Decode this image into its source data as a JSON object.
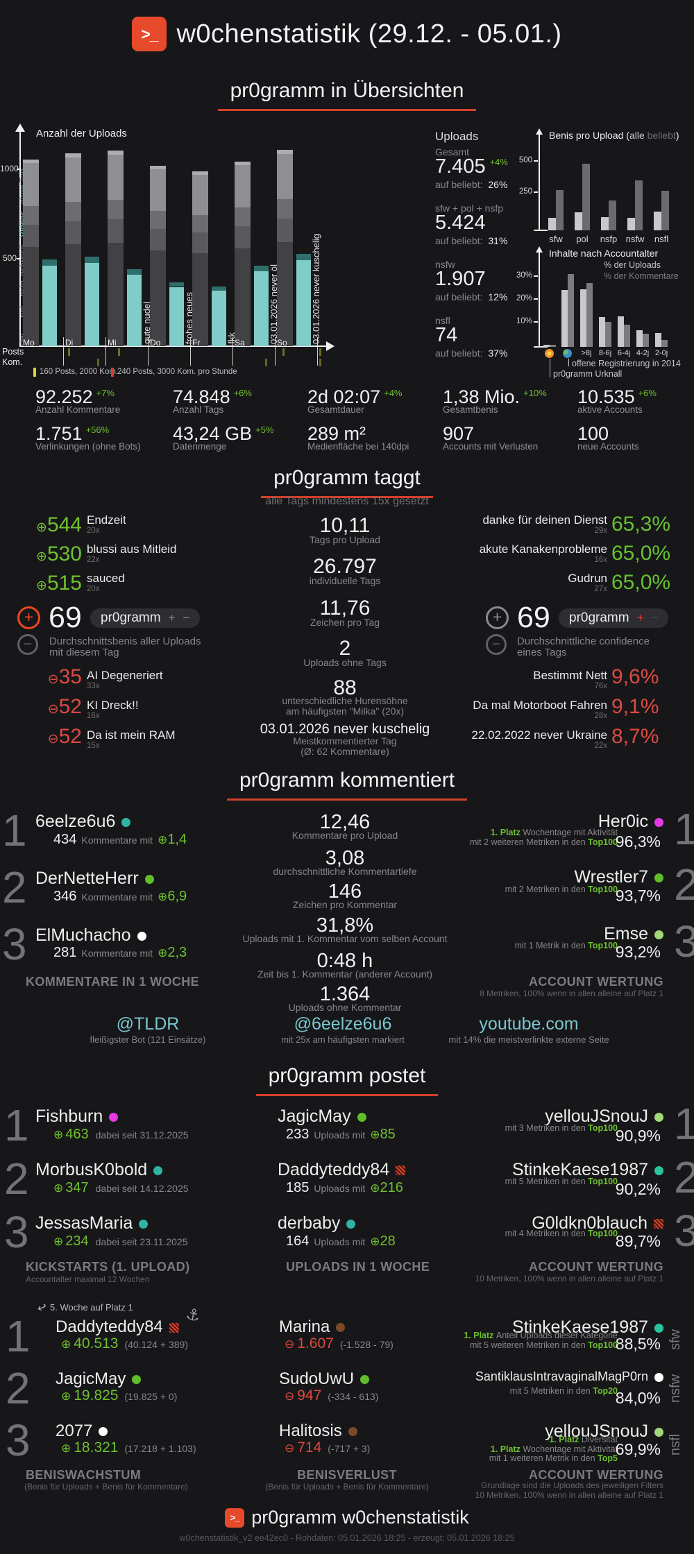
{
  "page": {
    "background": "#17171a",
    "accent": "#d24029"
  },
  "header": {
    "title": "w0chenstatistik (29.12. - 05.01.)",
    "logo_icon": "pr0gramm-terminal-icon"
  },
  "headings": {
    "uebersichten": "pr0gramm in Übersichten",
    "taggt": "pr0gramm taggt",
    "taggt_subtitle": "alle Tags mindestens 15x gesetzt",
    "kommentiert": "pr0gramm kommentiert",
    "postet": "pr0gramm postet"
  },
  "chart_data": [
    {
      "id": "anzahl_der_uploads",
      "type": "bar",
      "title": "Anzahl der Uploads",
      "categories": [
        "Mo",
        "Di",
        "Mi",
        "Do",
        "Fr",
        "Sa",
        "So"
      ],
      "series": [
        {
          "name": "Uploads gesamt (Stack: sfw, pol, nsfp, nsfw, nsfl)",
          "values": [
            1045,
            1075,
            1090,
            1010,
            980,
            1030,
            1095
          ]
        },
        {
          "name": "Videos",
          "values": [
            450,
            465,
            400,
            330,
            310,
            420,
            480
          ]
        },
        {
          "name": "ohne Ton",
          "values": [
            35,
            35,
            30,
            25,
            25,
            30,
            35
          ]
        }
      ],
      "stack_fractions": [
        0.53,
        0.12,
        0.1,
        0.23,
        0.02
      ],
      "axis_stack_labels": [
        {
          "text": "sfw",
          "color": "#86868a"
        },
        {
          "text": "pol",
          "color": "#86868a"
        },
        {
          "text": "nsfp",
          "color": "#86868a"
        },
        {
          "text": "nsfw",
          "color": "#86868a"
        },
        {
          "text": "nsfl",
          "color": "#86868a"
        },
        {
          "text": "Videos",
          "color": "#6fc7c4"
        },
        {
          "text": "ohne Ton",
          "color": "#55817f"
        }
      ],
      "yticks": [
        500,
        1000
      ],
      "ylim": [
        0,
        1200
      ],
      "annotations": [
        {
          "category": "Mi",
          "text": "gute nudel"
        },
        {
          "category": "Do",
          "text": "frohes neues"
        },
        {
          "category": "Fr",
          "text": "fkk"
        },
        {
          "category": "Sa",
          "text": "03.01.2026 never öl"
        },
        {
          "category": "So",
          "text": "03.01.2026 never kuschelig"
        }
      ],
      "activity_rows": [
        "Posts",
        "Kom."
      ],
      "activity_ticks": {
        "posts": [
          98,
          170,
          407,
          460
        ],
        "kom": [
          140,
          382,
          460
        ]
      },
      "legend": [
        {
          "color": "#e3d32b",
          "label": "160 Posts, 2000 Kom."
        },
        {
          "color": "#e0392c",
          "label": "240 Posts, 3000 Kom. pro Stunde"
        }
      ]
    },
    {
      "id": "benis_pro_upload",
      "type": "bar",
      "title": "Benis pro Upload",
      "categories": [
        "sfw",
        "pol",
        "nsfp",
        "nsfw",
        "nsfl"
      ],
      "series": [
        {
          "name": "alle",
          "color": "#c9c9cb",
          "values": [
            90,
            130,
            95,
            90,
            135
          ]
        },
        {
          "name": "beliebt",
          "color": "#6b6b6e",
          "values": [
            290,
            480,
            215,
            360,
            285
          ]
        }
      ],
      "yticks": [
        250,
        500
      ],
      "ylim": [
        0,
        560
      ],
      "legend_position": "title"
    },
    {
      "id": "inhalte_nach_accountalter",
      "type": "bar",
      "title": "Inhalte nach Accountalter",
      "categories": [
        "💥",
        "🌍",
        ">8j",
        "8-6j",
        "6-4j",
        "4-2j",
        "2-0j"
      ],
      "category_icons": [
        "boom",
        "globe",
        null,
        null,
        null,
        null,
        null
      ],
      "series": [
        {
          "name": "% der Uploads",
          "color": "#c9c9cb",
          "values": [
            1,
            24,
            24.5,
            12.5,
            13,
            7,
            6
          ]
        },
        {
          "name": "% der Kommentare",
          "color": "#7c7c7f",
          "values": [
            1,
            31,
            27,
            10.5,
            9.5,
            5.5,
            3
          ]
        }
      ],
      "yticks": [
        "10%",
        "20%",
        "30%"
      ],
      "ylim": [
        0,
        36
      ],
      "annotations": [
        {
          "target": "🌍",
          "text": "offene Registrierung in 2014"
        },
        {
          "target": "💥",
          "text": "pr0gramm Urknall"
        }
      ]
    }
  ],
  "overview": {
    "uploads_panel": {
      "title": "Uploads",
      "entries": [
        {
          "label": "Gesamt",
          "value": "7.405",
          "delta": "+4%",
          "beliebt_label": "auf beliebt:",
          "beliebt": "26%"
        },
        {
          "label": "sfw + pol + nsfp",
          "value": "5.424",
          "delta": null,
          "beliebt_label": "auf beliebt:",
          "beliebt": "31%"
        },
        {
          "label": "nsfw",
          "value": "1.907",
          "delta": null,
          "beliebt_label": "auf beliebt:",
          "beliebt": "12%"
        },
        {
          "label": "nsfl",
          "value": "74",
          "delta": null,
          "beliebt_label": "auf beliebt:",
          "beliebt": "37%"
        }
      ]
    },
    "stats_rows": [
      [
        {
          "value": "92.252",
          "delta": "+7%",
          "label": "Anzahl Kommentare"
        },
        {
          "value": "74.848",
          "delta": "+6%",
          "label": "Anzahl Tags"
        },
        {
          "value": "2d 02:07",
          "delta": "+4%",
          "label": "Gesamtdauer"
        },
        {
          "value": "1,38 Mio.",
          "delta": "+10%",
          "label": "Gesamtbenis"
        },
        {
          "value": "10.535",
          "delta": "+6%",
          "label": "aktive Accounts"
        }
      ],
      [
        {
          "value": "1.751",
          "delta": "+56%",
          "label": "Verlinkungen (ohne Bots)"
        },
        {
          "value": "43,24 GB",
          "delta": "+5%",
          "label": "Datenmenge"
        },
        {
          "value": "289 m²",
          "delta": null,
          "label": "Medienfläche bei 140dpi"
        },
        {
          "value": "907",
          "delta": null,
          "label": "Accounts mit Verlusten"
        },
        {
          "value": "100",
          "delta": null,
          "label": "neue Accounts"
        }
      ]
    ]
  },
  "taggt": {
    "top": [
      {
        "value": "544",
        "tag": "Endzeit",
        "count": "20x"
      },
      {
        "value": "530",
        "tag": "blussi aus Mitleid",
        "count": "22x"
      },
      {
        "value": "515",
        "tag": "sauced",
        "count": "20x"
      }
    ],
    "benis_badge": {
      "value": "69",
      "pill": "pr0gramm",
      "desc": [
        "Durchschnittsbenis aller Uploads",
        "mit diesem Tag"
      ]
    },
    "flop": [
      {
        "value": "35",
        "tag": "AI Degeneriert",
        "count": "33x"
      },
      {
        "value": "52",
        "tag": "KI Dreck!!",
        "count": "16x"
      },
      {
        "value": "52",
        "tag": "Da ist mein RAM",
        "count": "15x"
      }
    ],
    "stats": [
      {
        "value": "10,11",
        "label": [
          "Tags pro Upload"
        ]
      },
      {
        "value": "26.797",
        "label": [
          "individuelle Tags"
        ]
      },
      {
        "value": "11,76",
        "label": [
          "Zeichen pro Tag"
        ]
      },
      {
        "value": "2",
        "label": [
          "Uploads ohne Tags"
        ]
      },
      {
        "value": "88",
        "label": [
          "unterschiedliche Hurensöhne",
          "am häufigsten \"Milka\" (20x)"
        ]
      },
      {
        "value": "03.01.2026 never kuschelig",
        "small": true,
        "label": [
          "Meistkommentierter Tag",
          "(Ø: 62 Kommentare)"
        ]
      }
    ],
    "confidence_badge": {
      "value": "69",
      "pill": "pr0gramm",
      "desc": [
        "Durchschnittliche confidence",
        "eines Tags"
      ]
    },
    "conf_top": [
      {
        "tag": "danke für deinen Dienst",
        "count": "29x",
        "value": "65,3%"
      },
      {
        "tag": "akute Kanakenprobleme",
        "count": "16x",
        "value": "65,0%"
      },
      {
        "tag": "Gudrun",
        "count": "27x",
        "value": "65,0%"
      }
    ],
    "conf_flop": [
      {
        "tag": "Bestimmt Nett",
        "count": "76x",
        "value": "9,6%"
      },
      {
        "tag": "Da mal Motorboot Fahren",
        "count": "28x",
        "value": "9,1%"
      },
      {
        "tag": "22.02.2022 never Ukraine",
        "count": "22x",
        "value": "8,7%"
      }
    ]
  },
  "kommentiert": {
    "left": {
      "entries": [
        {
          "rank": "1",
          "name": "6eelze6u6",
          "dot": "#2fb3a3",
          "value": "434",
          "unit": "Kommentare mit",
          "delta": "1,4"
        },
        {
          "rank": "2",
          "name": "DerNetteHerr",
          "dot": "#61bd2a",
          "value": "346",
          "unit": "Kommentare mit",
          "delta": "6,9"
        },
        {
          "rank": "3",
          "name": "ElMuchacho",
          "dot": "#ffffff",
          "value": "281",
          "unit": "Kommentare mit",
          "delta": "2,3"
        }
      ],
      "caption": "KOMMENTARE IN 1 WOCHE"
    },
    "middle": [
      {
        "value": "12,46",
        "label": "Kommentare pro Upload"
      },
      {
        "value": "3,08",
        "label": "durchschnittliche Kommentartiefe"
      },
      {
        "value": "146",
        "label": "Zeichen pro Kommentar"
      },
      {
        "value": "31,8%",
        "label": "Uploads mit 1. Kommentar vom selben Account"
      },
      {
        "value": "0:48 h",
        "label": "Zeit bis 1. Kommentar (anderer Account)"
      },
      {
        "value": "1.364",
        "label": "Uploads ohne Kommentar"
      }
    ],
    "right": {
      "entries": [
        {
          "rank": "1",
          "name": "Her0ic",
          "dot": "#e33ae3",
          "value": "96,3%",
          "lines": [
            [
              {
                "t": "1. Platz ",
                "hl": true
              },
              {
                "t": "Wochentage mit Aktivität"
              }
            ],
            [
              {
                "t": "mit 2 weiteren Metriken in den "
              },
              {
                "t": "Top100",
                "hl": true
              }
            ]
          ]
        },
        {
          "rank": "2",
          "name": "Wrestler7",
          "dot": "#61bd2a",
          "value": "93,7%",
          "lines": [
            [
              {
                "t": "mit 2 Metriken in den "
              },
              {
                "t": "Top100",
                "hl": true
              }
            ]
          ]
        },
        {
          "rank": "3",
          "name": "Emse",
          "dot": "#a3d877",
          "value": "93,2%",
          "lines": [
            [
              {
                "t": "mit 1 Metrik in den "
              },
              {
                "t": "Top100",
                "hl": true
              }
            ]
          ]
        }
      ],
      "caption": "ACCOUNT WERTUNG",
      "caption_sub": "8 Metriken, 100% wenn in allen alleine auf Platz 1"
    },
    "highlights": [
      {
        "name": "@TLDR",
        "label": "fleißigster Bot (121 Einsätze)"
      },
      {
        "name": "@6eelze6u6",
        "label": "mit 25x am häufigsten markiert"
      },
      {
        "name": "youtube.com",
        "label": "mit 14% die meistverlinkte externe Seite"
      }
    ]
  },
  "postet": {
    "left": {
      "entries": [
        {
          "rank": "1",
          "name": "Fishburn",
          "dot": "#e33ae3",
          "delta": "463",
          "label": "dabei seit 31.12.2025"
        },
        {
          "rank": "2",
          "name": "MorbusK0bold",
          "dot": "#2fb3a3",
          "delta": "347",
          "label": "dabei seit 14.12.2025"
        },
        {
          "rank": "3",
          "name": "JessasMaria",
          "dot": "#2fb3a3",
          "delta": "234",
          "label": "dabei seit 23.11.2025"
        }
      ],
      "caption": "KICKSTARTS (1. UPLOAD)",
      "caption_sub": "Accountalter maximal 12 Wochen"
    },
    "middle": {
      "entries": [
        {
          "name": "JagicMay",
          "dot": "#61bd2a",
          "value": "233",
          "unit": "Uploads mit",
          "delta": "85"
        },
        {
          "name": "Daddyteddy84",
          "dot": "banned",
          "value": "185",
          "unit": "Uploads mit",
          "delta": "216"
        },
        {
          "name": "derbaby",
          "dot": "#2fb3a3",
          "value": "164",
          "unit": "Uploads mit",
          "delta": "28"
        }
      ],
      "caption": "UPLOADS IN 1 WOCHE"
    },
    "right": {
      "entries": [
        {
          "rank": "1",
          "name": "yellouJSnouJ",
          "dot": "#a3d877",
          "value": "90,9%",
          "lines": [
            [
              {
                "t": "mit 3 Metriken in den "
              },
              {
                "t": "Top100",
                "hl": true
              }
            ]
          ]
        },
        {
          "rank": "2",
          "name": "StinkeKaese1987",
          "dot": "#2cc29c",
          "value": "90,2%",
          "lines": [
            [
              {
                "t": "mit 5 Metriken in den "
              },
              {
                "t": "Top100",
                "hl": true
              }
            ]
          ]
        },
        {
          "rank": "3",
          "name": "G0ldkn0blauch",
          "dot": "banned",
          "value": "89,7%",
          "lines": [
            [
              {
                "t": "mit 4 Metriken in den "
              },
              {
                "t": "Top100",
                "hl": true
              }
            ]
          ]
        }
      ],
      "caption": "ACCOUNT WERTUNG",
      "caption_sub": "10 Metriken, 100% wenn in allen alleine auf Platz 1"
    }
  },
  "benis": {
    "note": "5. Woche auf Platz 1",
    "left": {
      "entries": [
        {
          "rank": "1",
          "name": "Daddyteddy84",
          "dot": "banned",
          "anchor": true,
          "delta": "40.513",
          "detail": "(40.124 + 389)"
        },
        {
          "rank": "2",
          "name": "JagicMay",
          "dot": "#61bd2a",
          "delta": "19.825",
          "detail": "(19.825 + 0)"
        },
        {
          "rank": "3",
          "name": "2077",
          "dot": "#ffffff",
          "delta": "18.321",
          "detail": "(17.218 + 1.103)"
        }
      ],
      "caption": "BENISWACHSTUM",
      "caption_sub": "(Benis für Uploads + Benis für Kommentare)"
    },
    "middle": {
      "entries": [
        {
          "name": "Marina",
          "dot": "#7c4a28",
          "delta": "1.607",
          "detail": "(-1.528 - 79)"
        },
        {
          "name": "SudoUwU",
          "dot": "#61bd2a",
          "delta": "947",
          "detail": "(-334 - 613)"
        },
        {
          "name": "Halitosis",
          "dot": "#7c4a28",
          "delta": "714",
          "detail": "(-717 + 3)"
        }
      ],
      "caption": "BENISVERLUST",
      "caption_sub": "(Benis für Uploads + Benis für Kommentare)"
    },
    "right": {
      "entries": [
        {
          "name": "StinkeKaese1987",
          "dot": "#2cc29c",
          "side": "sfw",
          "value": "88,5%",
          "lines": [
            [
              {
                "t": "1. Platz ",
                "hl": true
              },
              {
                "t": "Anteil Uploads dieser Kategorie"
              }
            ],
            [
              {
                "t": "mit 5 weiteren Metriken in den "
              },
              {
                "t": "Top100",
                "hl": true
              }
            ]
          ]
        },
        {
          "name": "SantiklausIntravaginalMagP0rn",
          "dot": "#ffffff",
          "side": "nsfw",
          "small": true,
          "value": "84,0%",
          "lines": [
            [
              {
                "t": "mit 5 Metriken in den "
              },
              {
                "t": "Top20",
                "hl": true
              }
            ]
          ]
        },
        {
          "name": "yellouJSnouJ",
          "dot": "#a3d877",
          "side": "nsfl",
          "value": "69,9%",
          "lines": [
            [
              {
                "t": "1. Platz ",
                "hl": true
              },
              {
                "t": "Diversität"
              }
            ],
            [
              {
                "t": "1. Platz ",
                "hl": true
              },
              {
                "t": "Wochentage mit Aktivität"
              }
            ],
            [
              {
                "t": "mit 1 weiteren Metrik in den "
              },
              {
                "t": "Top5",
                "hl": true
              }
            ]
          ]
        }
      ],
      "caption": "ACCOUNT WERTUNG",
      "caption_subs": [
        "Grundlage sind die Uploads des jeweiligen Filters",
        "10 Metriken, 100% wenn in allen alleine auf Platz 1"
      ]
    }
  },
  "footer": {
    "title": "pr0gramm w0chenstatistik",
    "meta": "w0chenstatistik_v2 ee42ec0 - Rohdaten: 05.01.2026 18:25 - erzeugt: 05.01.2026 18:25"
  }
}
